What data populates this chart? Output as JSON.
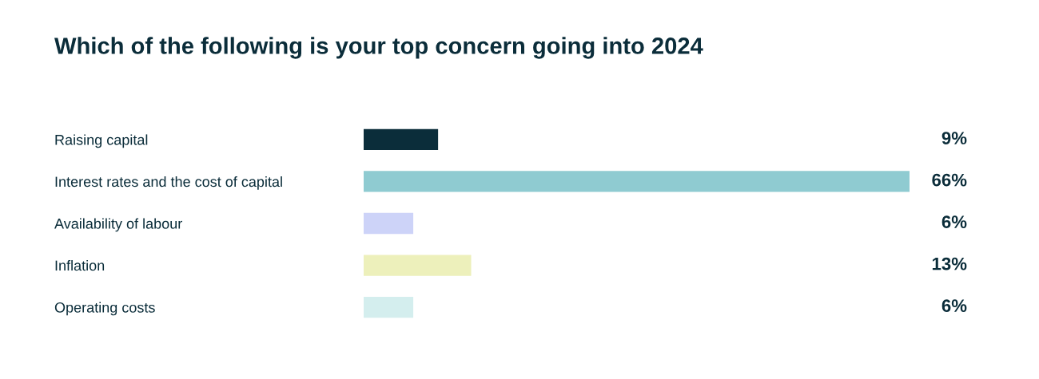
{
  "chart_data": {
    "type": "bar",
    "orientation": "horizontal",
    "title": "Which of the following is your top concern going into 2024",
    "categories": [
      "Raising capital",
      "Interest rates and the cost of capital",
      "Availability of labour",
      "Inflation",
      "Operating costs"
    ],
    "values": [
      9,
      66,
      6,
      13,
      6
    ],
    "colors": [
      "#0b2d3a",
      "#8fcbd1",
      "#cdd3f8",
      "#edf0bb",
      "#d4eeee"
    ],
    "value_labels": [
      "9%",
      "66%",
      "6%",
      "13%",
      "6%"
    ],
    "grid": false,
    "legend": false,
    "tick_labels": "y"
  }
}
